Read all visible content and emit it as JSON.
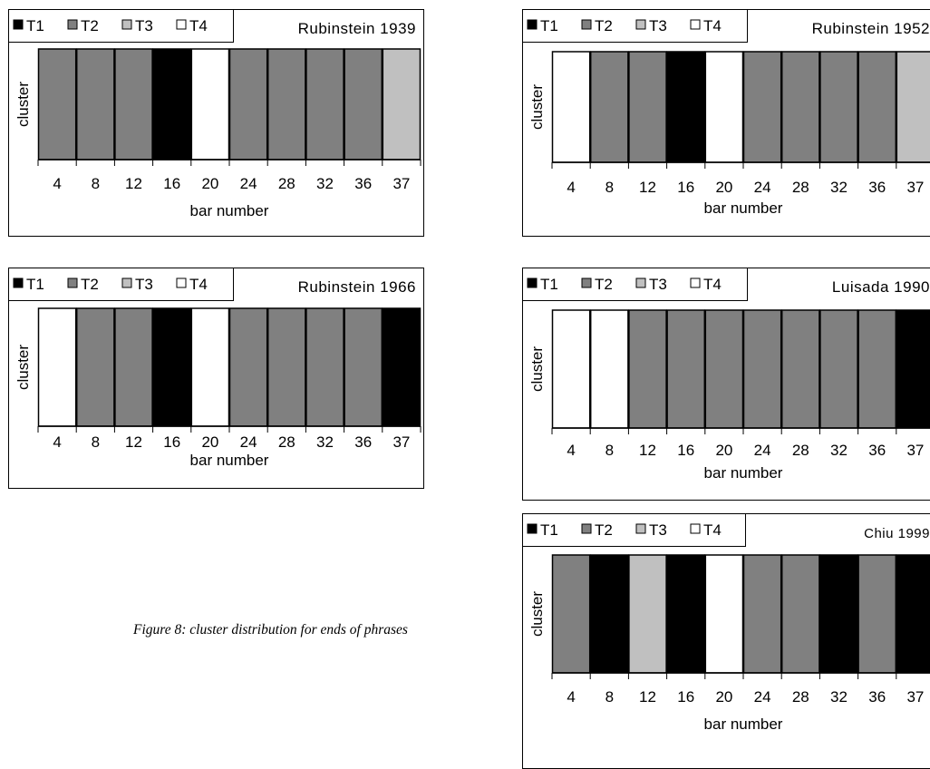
{
  "caption": "Figure 8: cluster distribution for ends of phrases",
  "legend": [
    {
      "label": "T1",
      "color": "#000000"
    },
    {
      "label": "T2",
      "color": "#808080"
    },
    {
      "label": "T3",
      "color": "#c0c0c0"
    },
    {
      "label": "T4",
      "color": "#ffffff"
    }
  ],
  "chart_data": [
    {
      "type": "bar",
      "title": "Rubinstein 1939",
      "xlabel": "bar number",
      "ylabel": "cluster",
      "categories": [
        "4",
        "8",
        "12",
        "16",
        "20",
        "24",
        "28",
        "32",
        "36",
        "37"
      ],
      "values": [
        "T2",
        "T2",
        "T2",
        "T1",
        "T4",
        "T2",
        "T2",
        "T2",
        "T2",
        "T3"
      ]
    },
    {
      "type": "bar",
      "title": "Rubinstein 1952",
      "xlabel": "bar number",
      "ylabel": "cluster",
      "categories": [
        "4",
        "8",
        "12",
        "16",
        "20",
        "24",
        "28",
        "32",
        "36",
        "37"
      ],
      "values": [
        "T4",
        "T2",
        "T2",
        "T1",
        "T4",
        "T2",
        "T2",
        "T2",
        "T2",
        "T3"
      ]
    },
    {
      "type": "bar",
      "title": "Rubinstein 1966",
      "xlabel": "bar number",
      "ylabel": "cluster",
      "categories": [
        "4",
        "8",
        "12",
        "16",
        "20",
        "24",
        "28",
        "32",
        "36",
        "37"
      ],
      "values": [
        "T4",
        "T2",
        "T2",
        "T1",
        "T4",
        "T2",
        "T2",
        "T2",
        "T2",
        "T1"
      ]
    },
    {
      "type": "bar",
      "title": "Luisada 1990",
      "xlabel": "bar number",
      "ylabel": "cluster",
      "categories": [
        "4",
        "8",
        "12",
        "16",
        "20",
        "24",
        "28",
        "32",
        "36",
        "37"
      ],
      "values": [
        "T4",
        "T4",
        "T2",
        "T2",
        "T2",
        "T2",
        "T2",
        "T2",
        "T2",
        "T1"
      ]
    },
    {
      "type": "bar",
      "title": "Chiu 1999",
      "xlabel": "bar number",
      "ylabel": "cluster",
      "categories": [
        "4",
        "8",
        "12",
        "16",
        "20",
        "24",
        "28",
        "32",
        "36",
        "37"
      ],
      "values": [
        "T2",
        "T1",
        "T3",
        "T1",
        "T4",
        "T2",
        "T2",
        "T1",
        "T2",
        "T1"
      ]
    }
  ]
}
